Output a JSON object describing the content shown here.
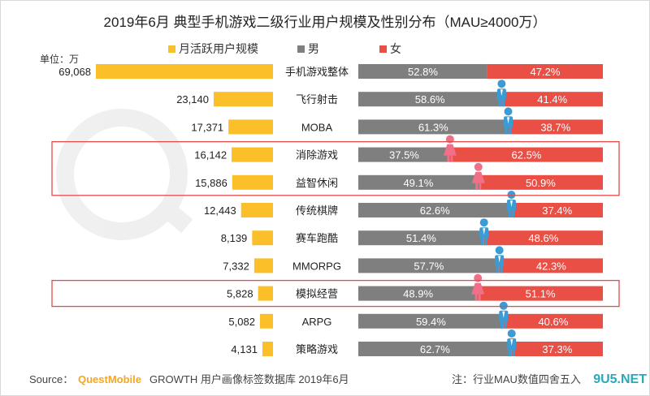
{
  "chart_data": {
    "type": "bar",
    "title": "2019年6月 典型手机游戏二级行业用户规模及性别分布（MAU≥4000万）",
    "unit_label": "单位：万",
    "legend": [
      {
        "name": "月活跃用户规模",
        "color": "#FBBF2A"
      },
      {
        "name": "男",
        "color": "#7F7F7F"
      },
      {
        "name": "女",
        "color": "#E94F45"
      }
    ],
    "categories": [
      "手机游戏整体",
      "飞行射击",
      "MOBA",
      "消除游戏",
      "益智休闲",
      "传统棋牌",
      "赛车跑酷",
      "MMORPG",
      "模拟经营",
      "ARPG",
      "策略游戏"
    ],
    "mau_labels": [
      "69,068",
      "23,140",
      "17,371",
      "16,142",
      "15,886",
      "12,443",
      "8,139",
      "7,332",
      "5,828",
      "5,082",
      "4,131"
    ],
    "series": [
      {
        "name": "月活跃用户规模",
        "values": [
          69068,
          23140,
          17371,
          16142,
          15886,
          12443,
          8139,
          7332,
          5828,
          5082,
          4131
        ]
      },
      {
        "name": "男",
        "values": [
          52.8,
          58.6,
          61.3,
          37.5,
          49.1,
          62.6,
          51.4,
          57.7,
          48.9,
          59.4,
          62.7
        ]
      },
      {
        "name": "女",
        "values": [
          47.2,
          41.4,
          38.7,
          62.5,
          50.9,
          37.4,
          48.6,
          42.3,
          51.1,
          40.6,
          37.3
        ]
      }
    ],
    "male_labels": [
      "52.8%",
      "58.6%",
      "61.3%",
      "37.5%",
      "49.1%",
      "62.6%",
      "51.4%",
      "57.7%",
      "48.9%",
      "59.4%",
      "62.7%"
    ],
    "female_labels": [
      "47.2%",
      "41.4%",
      "38.7%",
      "62.5%",
      "50.9%",
      "37.4%",
      "48.6%",
      "42.3%",
      "51.1%",
      "40.6%",
      "37.3%"
    ],
    "highlighted_categories": [
      "消除游戏",
      "益智休闲",
      "模拟经营"
    ],
    "icon_gender": [
      "male",
      "male",
      "male",
      "female",
      "female",
      "male",
      "male",
      "male",
      "female",
      "male",
      "male"
    ]
  },
  "footer": {
    "source_prefix": "Source：",
    "brand": "QuestMobile",
    "source_suffix": " GROWTH 用户画像标签数据库 2019年6月",
    "note": "注：行业MAU数值四舍五入",
    "watermark_site": "9U5.NET"
  },
  "colors": {
    "mau": "#FBBF2A",
    "male": "#7F7F7F",
    "female": "#E94F45",
    "male_icon": "#3D9BD4",
    "female_icon": "#F26F88",
    "highlight_box": "#E24C4C",
    "brand": "#F5A623"
  }
}
